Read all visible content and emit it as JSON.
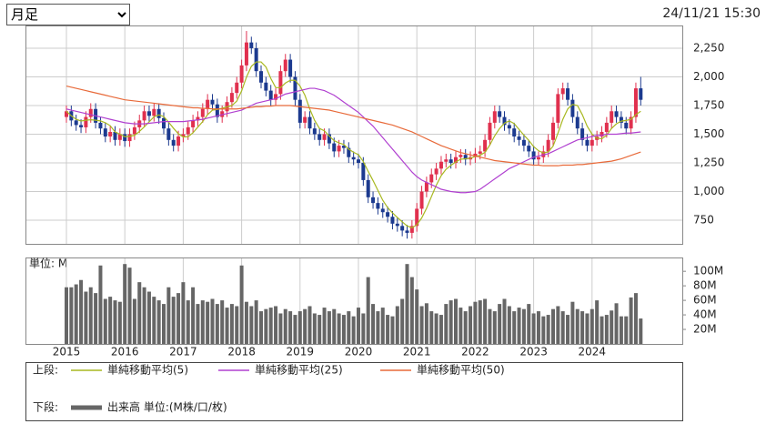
{
  "controls": {
    "period_select": "月足",
    "timestamp": "24/11/21 15:30"
  },
  "chart_data": [
    {
      "type": "candlestick",
      "legend_label": "上段:",
      "categories": [
        "2015",
        null,
        null,
        null,
        null,
        null,
        null,
        null,
        null,
        null,
        null,
        null,
        "2016",
        null,
        null,
        null,
        null,
        null,
        null,
        null,
        null,
        null,
        null,
        null,
        "2017",
        null,
        null,
        null,
        null,
        null,
        null,
        null,
        null,
        null,
        null,
        null,
        "2018",
        null,
        null,
        null,
        null,
        null,
        null,
        null,
        null,
        null,
        null,
        null,
        "2019",
        null,
        null,
        null,
        null,
        null,
        null,
        null,
        null,
        null,
        null,
        null,
        "2020",
        null,
        null,
        null,
        null,
        null,
        null,
        null,
        null,
        null,
        null,
        null,
        "2021",
        null,
        null,
        null,
        null,
        null,
        null,
        null,
        null,
        null,
        null,
        null,
        "2022",
        null,
        null,
        null,
        null,
        null,
        null,
        null,
        null,
        null,
        null,
        null,
        "2023",
        null,
        null,
        null,
        null,
        null,
        null,
        null,
        null,
        null,
        null,
        null,
        "2024",
        null,
        null,
        null,
        null,
        null,
        null,
        null,
        null,
        null,
        null
      ],
      "open": [
        1650,
        1700,
        1620,
        1580,
        1560,
        1650,
        1720,
        1600,
        1550,
        1480,
        1520,
        1450,
        1500,
        1440,
        1500,
        1560,
        1620,
        1700,
        1660,
        1720,
        1640,
        1550,
        1450,
        1400,
        1480,
        1500,
        1560,
        1620,
        1650,
        1720,
        1800,
        1760,
        1650,
        1700,
        1780,
        1860,
        1950,
        2100,
        2300,
        2250,
        2050,
        1950,
        1880,
        1800,
        1850,
        2050,
        2150,
        2000,
        1800,
        1600,
        1650,
        1550,
        1500,
        1450,
        1500,
        1420,
        1350,
        1400,
        1380,
        1300,
        1280,
        1250,
        1100,
        950,
        900,
        850,
        820,
        780,
        720,
        700,
        660,
        640,
        700,
        850,
        1000,
        1080,
        1150,
        1200,
        1260,
        1280,
        1250,
        1300,
        1320,
        1280,
        1300,
        1330,
        1350,
        1450,
        1600,
        1700,
        1650,
        1580,
        1550,
        1480,
        1450,
        1400,
        1350,
        1280,
        1300,
        1350,
        1450,
        1600,
        1850,
        1900,
        1800,
        1650,
        1550,
        1450,
        1400,
        1450,
        1480,
        1520,
        1600,
        1700,
        1650,
        1600,
        1550,
        1650,
        1900
      ],
      "high": [
        1750,
        1750,
        1670,
        1630,
        1700,
        1770,
        1770,
        1650,
        1600,
        1570,
        1570,
        1550,
        1550,
        1550,
        1610,
        1670,
        1750,
        1750,
        1770,
        1770,
        1690,
        1600,
        1500,
        1530,
        1550,
        1610,
        1670,
        1700,
        1770,
        1850,
        1850,
        1810,
        1750,
        1830,
        1910,
        2000,
        2150,
        2400,
        2350,
        2300,
        2100,
        2000,
        1930,
        1900,
        2100,
        2200,
        2200,
        2050,
        1850,
        1700,
        1700,
        1600,
        1550,
        1550,
        1550,
        1470,
        1450,
        1450,
        1430,
        1350,
        1330,
        1300,
        1150,
        1000,
        950,
        900,
        870,
        830,
        770,
        750,
        710,
        750,
        900,
        1050,
        1130,
        1200,
        1250,
        1310,
        1330,
        1330,
        1350,
        1370,
        1370,
        1350,
        1380,
        1400,
        1500,
        1650,
        1750,
        1750,
        1700,
        1630,
        1600,
        1530,
        1500,
        1450,
        1400,
        1350,
        1400,
        1500,
        1650,
        1900,
        1950,
        1950,
        1850,
        1700,
        1600,
        1500,
        1500,
        1530,
        1570,
        1650,
        1750,
        1750,
        1700,
        1650,
        1700,
        1950,
        2000
      ],
      "low": [
        1600,
        1570,
        1530,
        1510,
        1510,
        1600,
        1550,
        1500,
        1430,
        1430,
        1400,
        1400,
        1390,
        1390,
        1450,
        1510,
        1570,
        1610,
        1610,
        1590,
        1500,
        1400,
        1350,
        1350,
        1430,
        1450,
        1510,
        1570,
        1600,
        1670,
        1710,
        1600,
        1600,
        1650,
        1730,
        1810,
        1900,
        2050,
        2200,
        2000,
        1900,
        1830,
        1750,
        1750,
        1800,
        2000,
        1950,
        1750,
        1550,
        1550,
        1500,
        1450,
        1400,
        1400,
        1370,
        1300,
        1300,
        1330,
        1250,
        1230,
        1200,
        1050,
        900,
        850,
        800,
        770,
        730,
        670,
        650,
        610,
        590,
        590,
        650,
        800,
        950,
        1030,
        1100,
        1150,
        1210,
        1200,
        1200,
        1250,
        1230,
        1230,
        1250,
        1280,
        1300,
        1400,
        1550,
        1600,
        1530,
        1500,
        1430,
        1400,
        1350,
        1300,
        1230,
        1230,
        1250,
        1300,
        1400,
        1550,
        1800,
        1750,
        1600,
        1500,
        1400,
        1350,
        1350,
        1400,
        1430,
        1470,
        1550,
        1600,
        1550,
        1500,
        1500,
        1600,
        1750
      ],
      "close": [
        1700,
        1620,
        1580,
        1560,
        1650,
        1720,
        1600,
        1550,
        1480,
        1520,
        1450,
        1500,
        1440,
        1500,
        1560,
        1620,
        1700,
        1660,
        1720,
        1640,
        1550,
        1450,
        1400,
        1480,
        1500,
        1560,
        1620,
        1650,
        1720,
        1800,
        1760,
        1650,
        1700,
        1780,
        1860,
        1950,
        2100,
        2300,
        2250,
        2050,
        1950,
        1880,
        1800,
        1850,
        2050,
        2150,
        2000,
        1800,
        1600,
        1650,
        1550,
        1500,
        1450,
        1500,
        1420,
        1350,
        1400,
        1380,
        1300,
        1280,
        1250,
        1100,
        950,
        900,
        850,
        820,
        780,
        720,
        700,
        660,
        640,
        700,
        850,
        1000,
        1080,
        1150,
        1200,
        1260,
        1280,
        1250,
        1300,
        1320,
        1280,
        1300,
        1330,
        1350,
        1450,
        1600,
        1700,
        1650,
        1580,
        1550,
        1480,
        1450,
        1400,
        1350,
        1280,
        1300,
        1350,
        1450,
        1600,
        1850,
        1900,
        1800,
        1650,
        1550,
        1450,
        1400,
        1450,
        1480,
        1520,
        1600,
        1700,
        1650,
        1600,
        1550,
        1650,
        1900,
        1800
      ],
      "up_color": "#e0304e",
      "down_color": "#1c3a8f",
      "series": [
        {
          "name": "単純移動平均(5)",
          "color": "#a8b820",
          "values": [
            1700,
            1660,
            1630,
            1615,
            1622,
            1626,
            1622,
            1616,
            1600,
            1574,
            1520,
            1500,
            1478,
            1482,
            1490,
            1524,
            1564,
            1608,
            1652,
            1668,
            1654,
            1604,
            1552,
            1504,
            1476,
            1478,
            1512,
            1562,
            1610,
            1670,
            1710,
            1716,
            1726,
            1738,
            1750,
            1788,
            1878,
            1998,
            2092,
            2130,
            2130,
            2086,
            1986,
            1906,
            1906,
            1946,
            1970,
            1970,
            1920,
            1840,
            1720,
            1620,
            1550,
            1530,
            1484,
            1444,
            1424,
            1410,
            1370,
            1342,
            1322,
            1262,
            1176,
            1096,
            1010,
            924,
            860,
            814,
            774,
            736,
            700,
            684,
            710,
            770,
            854,
            956,
            1056,
            1138,
            1194,
            1228,
            1258,
            1282,
            1286,
            1290,
            1306,
            1316,
            1342,
            1406,
            1486,
            1550,
            1596,
            1616,
            1592,
            1542,
            1492,
            1446,
            1392,
            1356,
            1336,
            1346,
            1396,
            1510,
            1630,
            1720,
            1760,
            1750,
            1670,
            1570,
            1500,
            1466,
            1460,
            1490,
            1550,
            1590,
            1614,
            1620,
            1630,
            1670,
            1700
          ]
        },
        {
          "name": "単純移動平均(25)",
          "color": "#b040d0",
          "values": [
            1720,
            1710,
            1700,
            1690,
            1680,
            1670,
            1660,
            1650,
            1640,
            1630,
            1620,
            1610,
            1600,
            1595,
            1590,
            1590,
            1590,
            1595,
            1600,
            1605,
            1610,
            1610,
            1610,
            1610,
            1610,
            1615,
            1620,
            1625,
            1630,
            1640,
            1650,
            1660,
            1670,
            1680,
            1690,
            1700,
            1710,
            1730,
            1750,
            1770,
            1780,
            1790,
            1800,
            1810,
            1830,
            1850,
            1860,
            1870,
            1880,
            1890,
            1900,
            1900,
            1890,
            1880,
            1860,
            1840,
            1810,
            1780,
            1750,
            1720,
            1690,
            1650,
            1610,
            1570,
            1520,
            1470,
            1420,
            1370,
            1320,
            1270,
            1220,
            1170,
            1130,
            1100,
            1080,
            1060,
            1040,
            1020,
            1010,
            1000,
            995,
            990,
            990,
            995,
            1000,
            1020,
            1050,
            1080,
            1110,
            1140,
            1170,
            1200,
            1220,
            1240,
            1260,
            1280,
            1300,
            1310,
            1320,
            1330,
            1350,
            1370,
            1390,
            1410,
            1430,
            1450,
            1460,
            1470,
            1480,
            1490,
            1490,
            1500,
            1500,
            1500,
            1505,
            1510,
            1510,
            1515,
            1520
          ]
        },
        {
          "name": "単純移動平均(50)",
          "color": "#e86a3a",
          "values": [
            1920,
            1910,
            1900,
            1890,
            1880,
            1870,
            1860,
            1850,
            1840,
            1830,
            1820,
            1810,
            1800,
            1795,
            1790,
            1785,
            1780,
            1775,
            1770,
            1765,
            1760,
            1755,
            1750,
            1745,
            1740,
            1735,
            1730,
            1730,
            1725,
            1725,
            1720,
            1720,
            1720,
            1720,
            1720,
            1720,
            1725,
            1730,
            1735,
            1740,
            1740,
            1745,
            1745,
            1750,
            1750,
            1750,
            1750,
            1745,
            1740,
            1735,
            1730,
            1725,
            1720,
            1715,
            1710,
            1700,
            1690,
            1680,
            1670,
            1660,
            1650,
            1640,
            1630,
            1620,
            1610,
            1600,
            1590,
            1580,
            1565,
            1550,
            1535,
            1520,
            1500,
            1480,
            1460,
            1440,
            1420,
            1400,
            1385,
            1370,
            1355,
            1340,
            1330,
            1320,
            1310,
            1300,
            1290,
            1280,
            1270,
            1265,
            1260,
            1255,
            1250,
            1245,
            1240,
            1235,
            1230,
            1230,
            1225,
            1225,
            1225,
            1225,
            1230,
            1230,
            1230,
            1235,
            1235,
            1240,
            1245,
            1250,
            1255,
            1260,
            1265,
            1275,
            1285,
            1300,
            1315,
            1330,
            1345
          ]
        }
      ],
      "ylim": [
        544,
        2448
      ],
      "yticks": [
        {
          "value": 750,
          "label": "750"
        },
        {
          "value": 1000,
          "label": "1,000"
        },
        {
          "value": 1250,
          "label": "1,250"
        },
        {
          "value": 1500,
          "label": "1,500"
        },
        {
          "value": 1750,
          "label": "1,750"
        },
        {
          "value": 2000,
          "label": "2,000"
        },
        {
          "value": 2250,
          "label": "2,250"
        }
      ],
      "grid": true
    },
    {
      "type": "bar",
      "title": "単位: M",
      "legend_label": "下段:",
      "series_name": "出来高 単位:(M株/口/枚)",
      "color": "#666666",
      "values": [
        78,
        78,
        82,
        88,
        72,
        78,
        70,
        108,
        62,
        65,
        60,
        58,
        110,
        105,
        62,
        85,
        78,
        72,
        65,
        60,
        55,
        78,
        65,
        70,
        85,
        60,
        78,
        55,
        60,
        58,
        62,
        55,
        60,
        50,
        55,
        52,
        108,
        58,
        52,
        60,
        45,
        48,
        50,
        52,
        42,
        48,
        45,
        40,
        45,
        48,
        52,
        42,
        40,
        50,
        45,
        48,
        42,
        40,
        45,
        38,
        50,
        42,
        92,
        55,
        45,
        50,
        40,
        38,
        52,
        62,
        110,
        92,
        75,
        52,
        56,
        45,
        42,
        40,
        55,
        60,
        62,
        50,
        45,
        52,
        58,
        60,
        62,
        48,
        45,
        55,
        62,
        52,
        45,
        50,
        48,
        55,
        42,
        45,
        38,
        40,
        48,
        52,
        45,
        40,
        58,
        48,
        45,
        42,
        48,
        60,
        38,
        40,
        46,
        56,
        38,
        38,
        64,
        70,
        35
      ],
      "ylim": [
        0,
        119
      ],
      "yticks": [
        {
          "value": 20,
          "label": "20M"
        },
        {
          "value": 40,
          "label": "40M"
        },
        {
          "value": 60,
          "label": "60M"
        },
        {
          "value": 80,
          "label": "80M"
        },
        {
          "value": 100,
          "label": "100M"
        }
      ],
      "grid": false
    }
  ]
}
